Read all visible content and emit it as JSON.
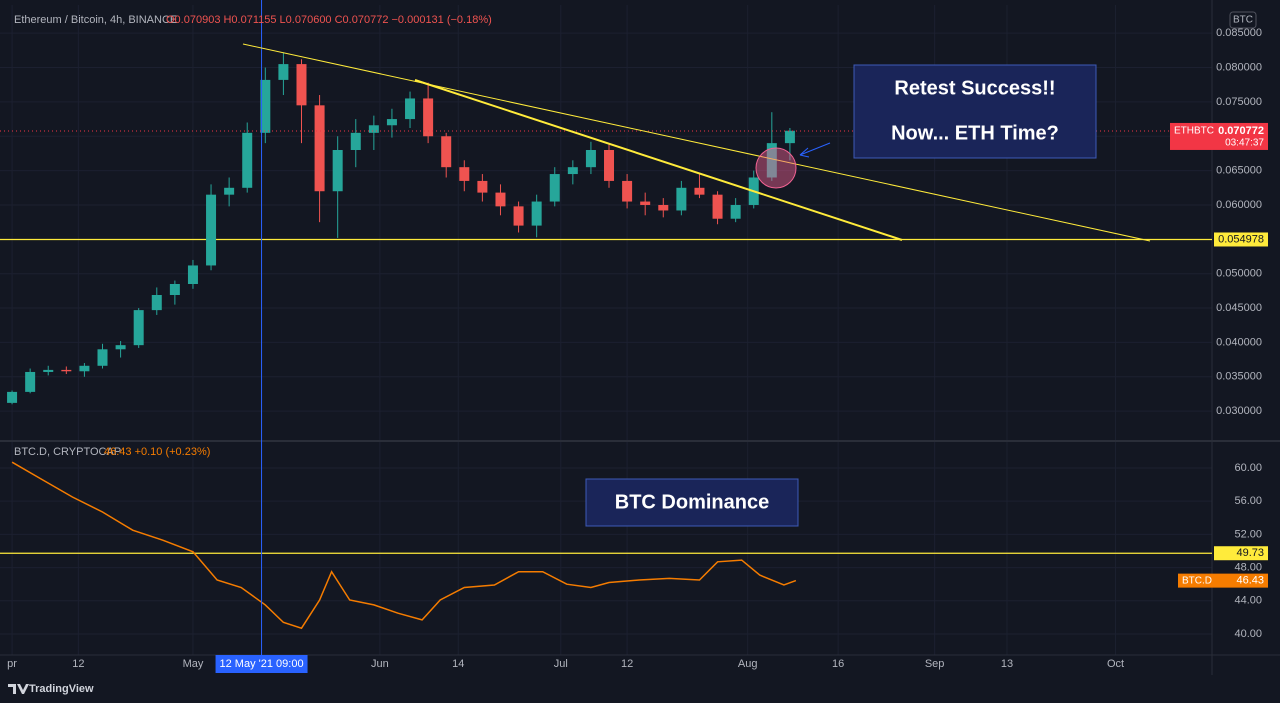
{
  "chart_data": [
    {
      "type": "candlestick",
      "title": "Ethereum / Bitcoin, 4h, BINANCE",
      "legend": "O0.070903 H0.071155 L0.070600 C0.070772 −0.000131 (−0.18%)",
      "x": [
        "2021-04-01",
        "2021-04-04",
        "2021-04-07",
        "2021-04-10",
        "2021-04-13",
        "2021-04-16",
        "2021-04-19",
        "2021-04-22",
        "2021-04-25",
        "2021-04-28",
        "2021-05-01",
        "2021-05-04",
        "2021-05-07",
        "2021-05-10",
        "2021-05-13",
        "2021-05-16",
        "2021-05-19",
        "2021-05-22",
        "2021-05-25",
        "2021-05-28",
        "2021-05-31",
        "2021-06-03",
        "2021-06-06",
        "2021-06-09",
        "2021-06-12",
        "2021-06-15",
        "2021-06-18",
        "2021-06-21",
        "2021-06-24",
        "2021-06-27",
        "2021-06-30",
        "2021-07-03",
        "2021-07-06",
        "2021-07-09",
        "2021-07-12",
        "2021-07-15",
        "2021-07-18",
        "2021-07-21",
        "2021-07-24",
        "2021-07-27",
        "2021-07-30",
        "2021-08-02",
        "2021-08-05",
        "2021-08-08"
      ],
      "open": [
        0.0312,
        0.0328,
        0.0357,
        0.036,
        0.0358,
        0.0366,
        0.039,
        0.0396,
        0.0447,
        0.0469,
        0.0485,
        0.0512,
        0.0615,
        0.0625,
        0.0705,
        0.0782,
        0.0805,
        0.0745,
        0.062,
        0.068,
        0.0705,
        0.0716,
        0.0725,
        0.0755,
        0.07,
        0.0655,
        0.0635,
        0.0618,
        0.0598,
        0.057,
        0.0605,
        0.0645,
        0.0655,
        0.068,
        0.0635,
        0.0605,
        0.06,
        0.0592,
        0.0625,
        0.0615,
        0.058,
        0.06,
        0.064,
        0.069
      ],
      "high": [
        0.033,
        0.0362,
        0.0366,
        0.0365,
        0.037,
        0.0398,
        0.0402,
        0.045,
        0.048,
        0.049,
        0.052,
        0.063,
        0.064,
        0.072,
        0.08,
        0.0822,
        0.0812,
        0.076,
        0.07,
        0.0725,
        0.073,
        0.074,
        0.0765,
        0.0778,
        0.0705,
        0.0665,
        0.0645,
        0.063,
        0.0605,
        0.0615,
        0.0655,
        0.0665,
        0.0692,
        0.0688,
        0.0645,
        0.0618,
        0.061,
        0.0635,
        0.0645,
        0.062,
        0.061,
        0.065,
        0.0735,
        0.0712
      ],
      "low": [
        0.031,
        0.0326,
        0.0352,
        0.0354,
        0.035,
        0.0362,
        0.0378,
        0.0392,
        0.044,
        0.0455,
        0.0478,
        0.0505,
        0.0598,
        0.0618,
        0.069,
        0.076,
        0.069,
        0.0575,
        0.0552,
        0.0655,
        0.068,
        0.0698,
        0.0712,
        0.069,
        0.064,
        0.062,
        0.0605,
        0.0585,
        0.056,
        0.0553,
        0.0598,
        0.063,
        0.0645,
        0.0625,
        0.0595,
        0.0585,
        0.0582,
        0.0585,
        0.061,
        0.0572,
        0.0575,
        0.0595,
        0.0635,
        0.0665
      ],
      "close": [
        0.0328,
        0.0357,
        0.036,
        0.0358,
        0.0366,
        0.039,
        0.0396,
        0.0447,
        0.0469,
        0.0485,
        0.0512,
        0.0615,
        0.0625,
        0.0705,
        0.0782,
        0.0805,
        0.0745,
        0.062,
        0.068,
        0.0705,
        0.0716,
        0.0725,
        0.0755,
        0.07,
        0.0655,
        0.0635,
        0.0618,
        0.0598,
        0.057,
        0.0605,
        0.0645,
        0.0655,
        0.068,
        0.0635,
        0.0605,
        0.06,
        0.0592,
        0.0625,
        0.0615,
        0.058,
        0.06,
        0.064,
        0.069,
        0.0708
      ],
      "up_color": "#26a69a",
      "down_color": "#ef5350",
      "xlim": [
        "2021-03-30",
        "2021-10-17"
      ],
      "ylim": [
        0.0258,
        0.0891
      ],
      "yticks": [
        {
          "value": 0.085,
          "label": "0.085000"
        },
        {
          "value": 0.08,
          "label": "0.080000"
        },
        {
          "value": 0.075,
          "label": "0.075000"
        },
        {
          "value": 0.07,
          "label": "0.070000"
        },
        {
          "value": 0.065,
          "label": "0.065000"
        },
        {
          "value": 0.06,
          "label": "0.060000"
        },
        {
          "value": 0.055,
          "label": "0.055000"
        },
        {
          "value": 0.05,
          "label": "0.050000"
        },
        {
          "value": 0.045,
          "label": "0.045000"
        },
        {
          "value": 0.04,
          "label": "0.040000"
        },
        {
          "value": 0.035,
          "label": "0.035000"
        },
        {
          "value": 0.03,
          "label": "0.030000"
        }
      ],
      "hlines": [
        {
          "value": 0.054978,
          "color": "#ffeb3b"
        }
      ],
      "last_label": "ETHBTC",
      "last_value": 0.070772,
      "countdown": "03:47:37",
      "last_color": "#f23645",
      "grid": true
    },
    {
      "type": "line",
      "title": "BTC.D, CRYPTOCAP",
      "legend": "46.43 +0.10 (+0.23%)",
      "x": [
        "2021-04-01",
        "2021-04-06",
        "2021-04-11",
        "2021-04-16",
        "2021-04-21",
        "2021-04-26",
        "2021-05-01",
        "2021-05-05",
        "2021-05-09",
        "2021-05-13",
        "2021-05-16",
        "2021-05-19",
        "2021-05-22",
        "2021-05-24",
        "2021-05-27",
        "2021-05-31",
        "2021-06-04",
        "2021-06-08",
        "2021-06-11",
        "2021-06-15",
        "2021-06-20",
        "2021-06-24",
        "2021-06-28",
        "2021-07-02",
        "2021-07-06",
        "2021-07-09",
        "2021-07-14",
        "2021-07-19",
        "2021-07-24",
        "2021-07-27",
        "2021-07-31",
        "2021-08-03",
        "2021-08-07",
        "2021-08-09"
      ],
      "values": [
        60.7,
        58.6,
        56.5,
        54.7,
        52.5,
        51.3,
        49.9,
        46.5,
        45.6,
        43.5,
        41.4,
        40.7,
        44.1,
        47.5,
        44.1,
        43.5,
        42.5,
        41.7,
        44.1,
        45.6,
        45.9,
        47.5,
        47.5,
        46.0,
        45.6,
        46.2,
        46.5,
        46.7,
        46.5,
        48.7,
        48.9,
        47.1,
        45.9,
        46.43
      ],
      "color": "#f57c00",
      "xlim": [
        "2021-03-30",
        "2021-10-17"
      ],
      "xticks": [
        {
          "value": "2021-04-01",
          "label": "pr"
        },
        {
          "value": "2021-04-12",
          "label": "12"
        },
        {
          "value": "2021-05-01",
          "label": "May"
        },
        {
          "value": "2021-06-01",
          "label": "Jun"
        },
        {
          "value": "2021-06-14",
          "label": "14"
        },
        {
          "value": "2021-07-01",
          "label": "Jul"
        },
        {
          "value": "2021-07-12",
          "label": "12"
        },
        {
          "value": "2021-08-01",
          "label": "Aug"
        },
        {
          "value": "2021-08-16",
          "label": "16"
        },
        {
          "value": "2021-09-01",
          "label": "Sep"
        },
        {
          "value": "2021-09-13",
          "label": "13"
        },
        {
          "value": "2021-10-01",
          "label": "Oct"
        }
      ],
      "ylim": [
        37.47,
        63.13
      ],
      "yticks": [
        {
          "value": 60,
          "label": "60.00"
        },
        {
          "value": 56,
          "label": "56.00"
        },
        {
          "value": 52,
          "label": "52.00"
        },
        {
          "value": 48,
          "label": "48.00"
        },
        {
          "value": 44,
          "label": "44.00"
        },
        {
          "value": 40,
          "label": "40.00"
        }
      ],
      "hlines": [
        {
          "value": 49.73,
          "color": "#ffeb3b"
        }
      ],
      "last_label": "BTC.D",
      "last_value": 46.43,
      "last_color": "#f57c00",
      "grid": true
    }
  ],
  "crosshair": {
    "x": "2021-05-12T09:00",
    "label": "12 May '21  09:00"
  },
  "annotations": {
    "top": [
      "Retest Success!!",
      "Now... ETH Time?"
    ],
    "bottom": "BTC Dominance"
  },
  "ui": {
    "currency": "BTC",
    "brand": "TradingView"
  }
}
